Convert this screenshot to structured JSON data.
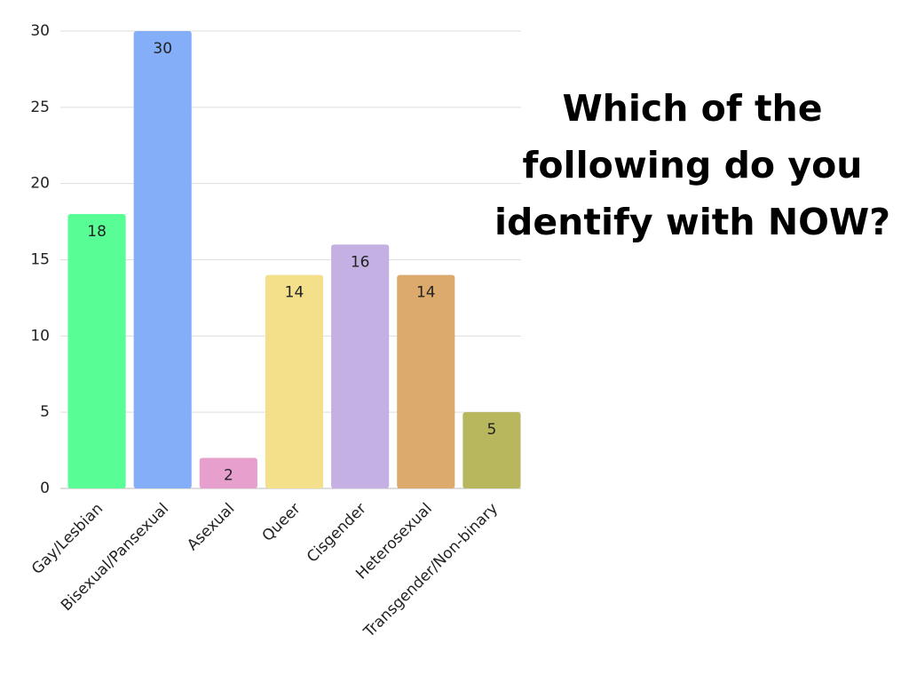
{
  "chart_data": {
    "type": "bar",
    "title": "Which of the following do you identify with NOW?",
    "categories": [
      "Gay/Lesbian",
      "Bisexual/Pansexual",
      "Asexual",
      "Queer",
      "Cisgender",
      "Heterosexual",
      "Transgender/Non-binary"
    ],
    "values": [
      18,
      30,
      2,
      14,
      16,
      14,
      5
    ],
    "colors": [
      "#58fd95",
      "#84aff8",
      "#e79fce",
      "#f4e08a",
      "#c4b0e3",
      "#dcaa6c",
      "#b8b75e"
    ],
    "ylim": [
      0,
      30
    ],
    "yticks": [
      0,
      5,
      10,
      15,
      20,
      25,
      30
    ],
    "grid": true
  }
}
